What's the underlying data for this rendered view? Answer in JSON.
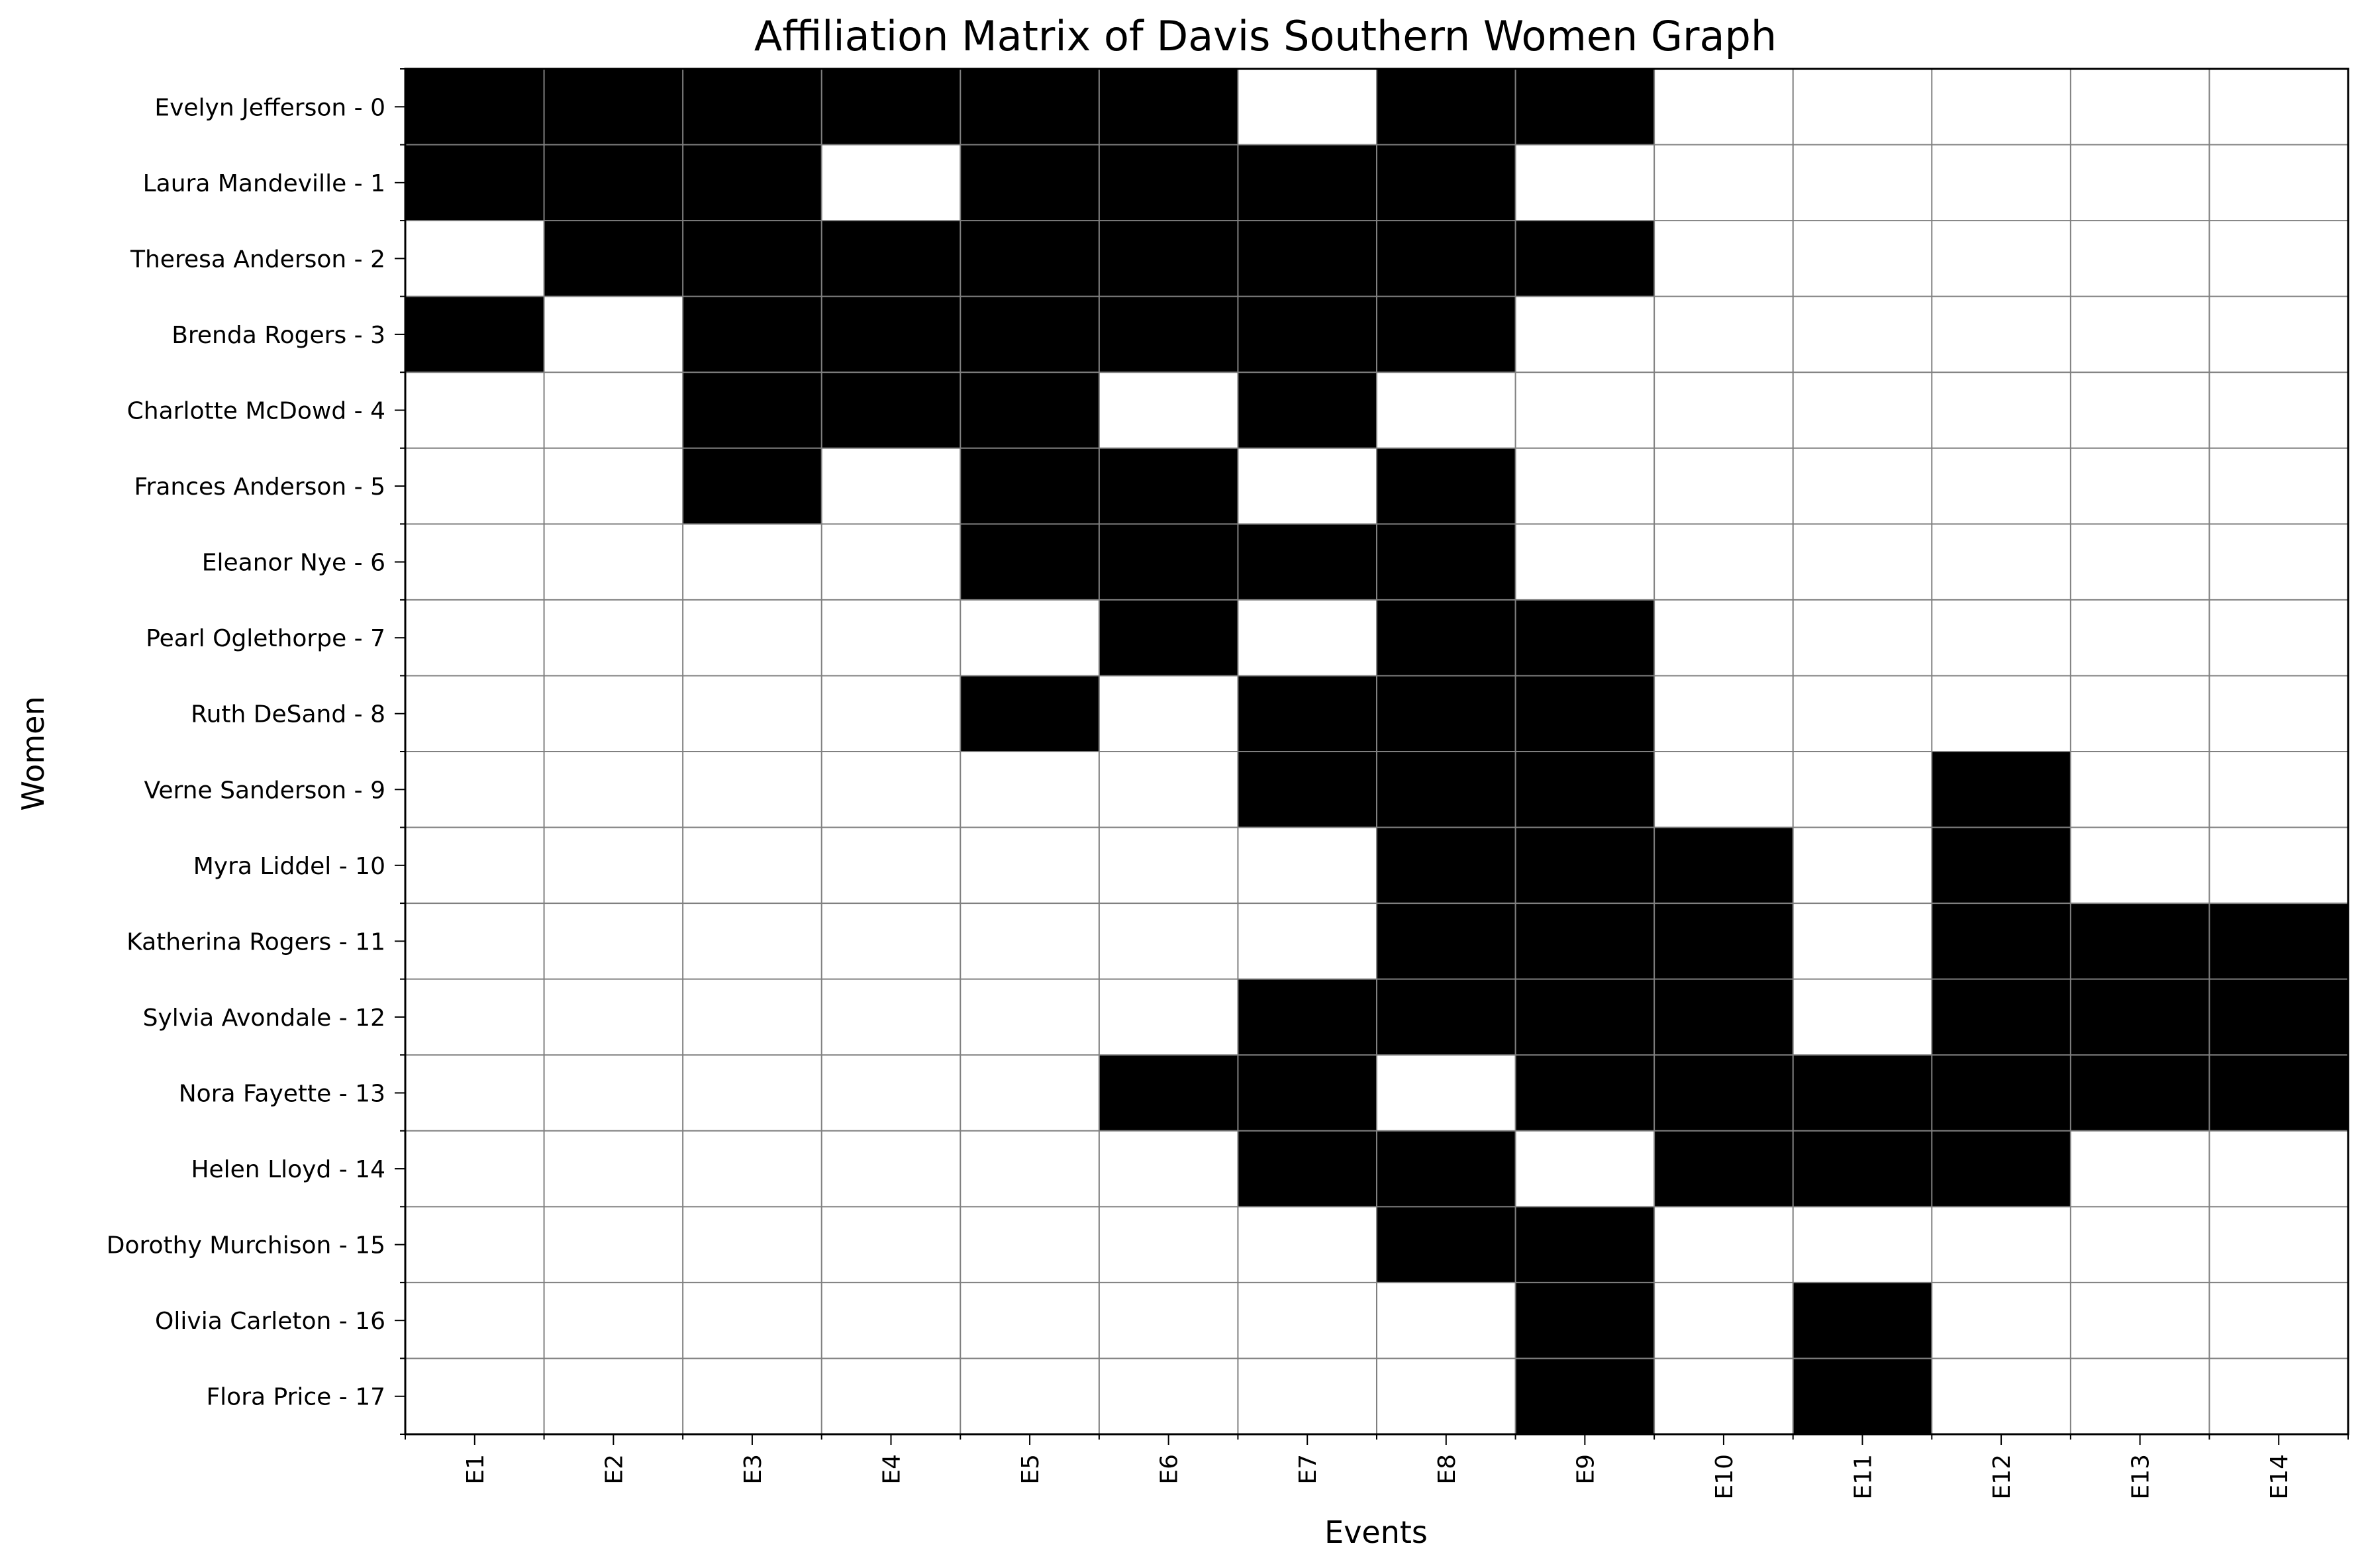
{
  "chart_data": {
    "type": "heatmap",
    "title": "Affiliation Matrix of Davis Southern Women Graph",
    "xlabel": "Events",
    "ylabel": "Women",
    "colors": {
      "attended": "#000000",
      "not_attended": "#ffffff",
      "grid": "#808080",
      "frame": "#000000"
    },
    "grid": true,
    "events": [
      "E1",
      "E2",
      "E3",
      "E4",
      "E5",
      "E6",
      "E7",
      "E8",
      "E9",
      "E10",
      "E11",
      "E12",
      "E13",
      "E14"
    ],
    "women": [
      "Evelyn Jefferson - 0",
      "Laura Mandeville - 1",
      "Theresa Anderson - 2",
      "Brenda Rogers - 3",
      "Charlotte McDowd - 4",
      "Frances Anderson - 5",
      "Eleanor Nye - 6",
      "Pearl Oglethorpe - 7",
      "Ruth DeSand - 8",
      "Verne Sanderson - 9",
      "Myra Liddel - 10",
      "Katherina Rogers - 11",
      "Sylvia Avondale - 12",
      "Nora Fayette - 13",
      "Helen Lloyd - 14",
      "Dorothy Murchison - 15",
      "Olivia Carleton - 16",
      "Flora Price - 17"
    ],
    "matrix": [
      [
        1,
        1,
        1,
        1,
        1,
        1,
        0,
        1,
        1,
        0,
        0,
        0,
        0,
        0
      ],
      [
        1,
        1,
        1,
        0,
        1,
        1,
        1,
        1,
        0,
        0,
        0,
        0,
        0,
        0
      ],
      [
        0,
        1,
        1,
        1,
        1,
        1,
        1,
        1,
        1,
        0,
        0,
        0,
        0,
        0
      ],
      [
        1,
        0,
        1,
        1,
        1,
        1,
        1,
        1,
        0,
        0,
        0,
        0,
        0,
        0
      ],
      [
        0,
        0,
        1,
        1,
        1,
        0,
        1,
        0,
        0,
        0,
        0,
        0,
        0,
        0
      ],
      [
        0,
        0,
        1,
        0,
        1,
        1,
        0,
        1,
        0,
        0,
        0,
        0,
        0,
        0
      ],
      [
        0,
        0,
        0,
        0,
        1,
        1,
        1,
        1,
        0,
        0,
        0,
        0,
        0,
        0
      ],
      [
        0,
        0,
        0,
        0,
        0,
        1,
        0,
        1,
        1,
        0,
        0,
        0,
        0,
        0
      ],
      [
        0,
        0,
        0,
        0,
        1,
        0,
        1,
        1,
        1,
        0,
        0,
        0,
        0,
        0
      ],
      [
        0,
        0,
        0,
        0,
        0,
        0,
        1,
        1,
        1,
        0,
        0,
        1,
        0,
        0
      ],
      [
        0,
        0,
        0,
        0,
        0,
        0,
        0,
        1,
        1,
        1,
        0,
        1,
        0,
        0
      ],
      [
        0,
        0,
        0,
        0,
        0,
        0,
        0,
        1,
        1,
        1,
        0,
        1,
        1,
        1
      ],
      [
        0,
        0,
        0,
        0,
        0,
        0,
        1,
        1,
        1,
        1,
        0,
        1,
        1,
        1
      ],
      [
        0,
        0,
        0,
        0,
        0,
        1,
        1,
        0,
        1,
        1,
        1,
        1,
        1,
        1
      ],
      [
        0,
        0,
        0,
        0,
        0,
        0,
        1,
        1,
        0,
        1,
        1,
        1,
        0,
        0
      ],
      [
        0,
        0,
        0,
        0,
        0,
        0,
        0,
        1,
        1,
        0,
        0,
        0,
        0,
        0
      ],
      [
        0,
        0,
        0,
        0,
        0,
        0,
        0,
        0,
        1,
        0,
        1,
        0,
        0,
        0
      ],
      [
        0,
        0,
        0,
        0,
        0,
        0,
        0,
        0,
        1,
        0,
        1,
        0,
        0,
        0
      ]
    ]
  }
}
